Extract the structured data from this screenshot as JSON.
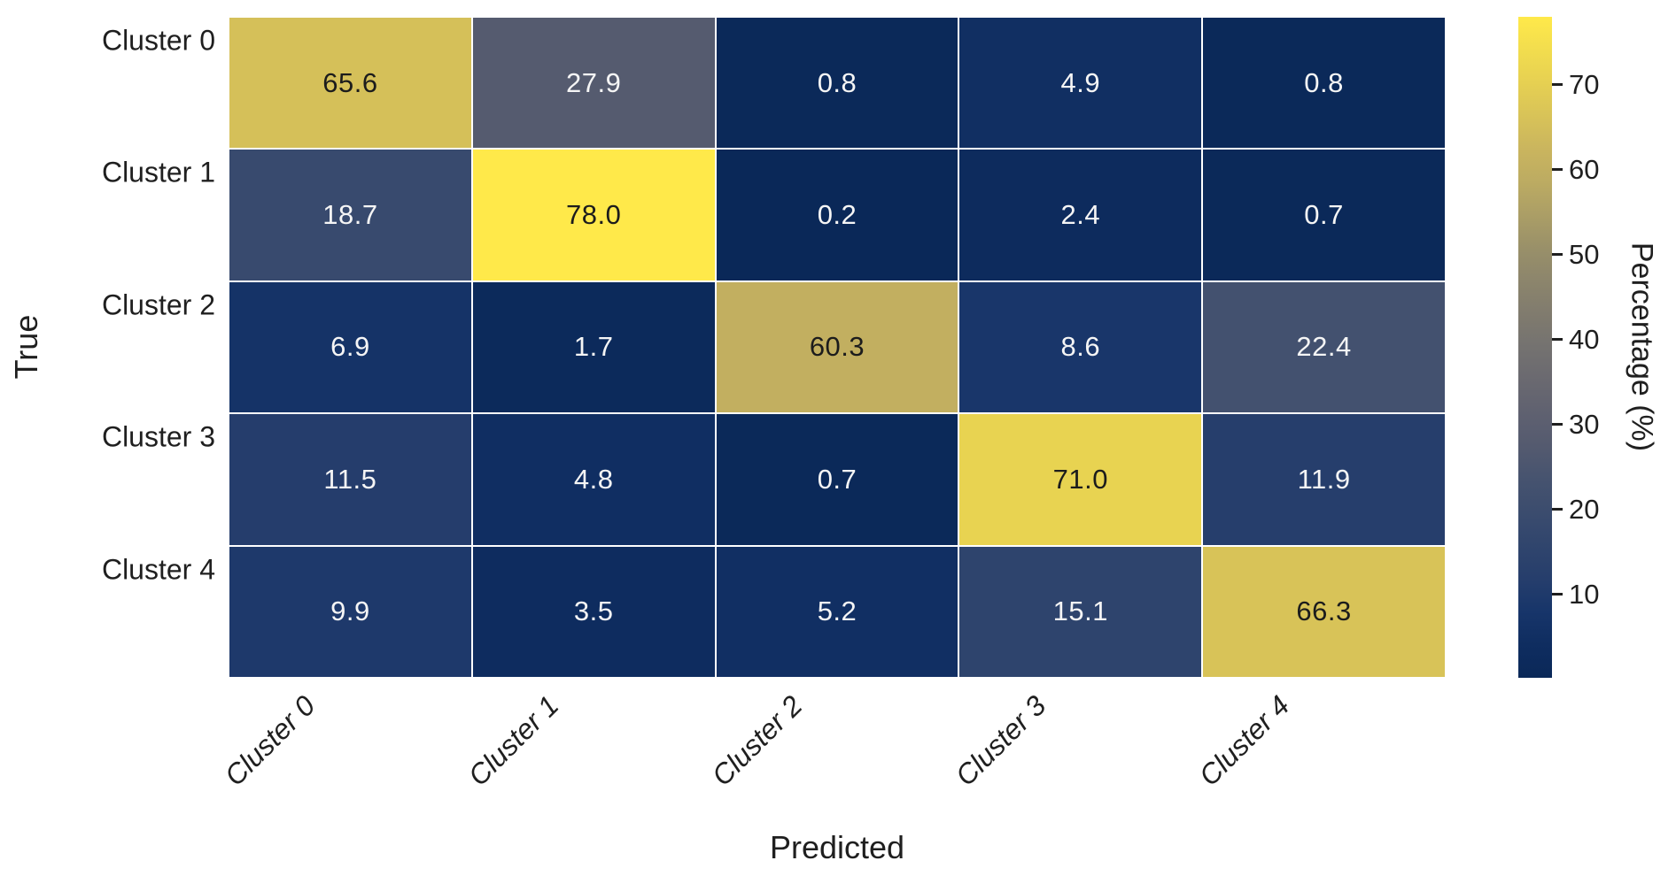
{
  "chart_data": {
    "type": "heatmap",
    "title": "",
    "xlabel": "Predicted",
    "ylabel": "True",
    "x_categories": [
      "Cluster 0",
      "Cluster 1",
      "Cluster 2",
      "Cluster 3",
      "Cluster 4"
    ],
    "y_categories": [
      "Cluster 0",
      "Cluster 1",
      "Cluster 2",
      "Cluster 3",
      "Cluster 4"
    ],
    "matrix": [
      [
        65.6,
        27.9,
        0.8,
        4.9,
        0.8
      ],
      [
        18.7,
        78.0,
        0.2,
        2.4,
        0.7
      ],
      [
        6.9,
        1.7,
        60.3,
        8.6,
        22.4
      ],
      [
        11.5,
        4.8,
        0.7,
        71.0,
        11.9
      ],
      [
        9.9,
        3.5,
        5.2,
        15.1,
        66.3
      ]
    ],
    "cell_value_decimals": 1,
    "colorbar": {
      "label": "Percentage (%)",
      "ticks": [
        10,
        20,
        30,
        40,
        50,
        60,
        70
      ],
      "vmin": 0.2,
      "vmax": 78.0,
      "orientation": "vertical",
      "position": "right"
    },
    "colormap": {
      "name": "cividis-like",
      "stops": [
        [
          0.0,
          "#0a2858"
        ],
        [
          0.05,
          "#0f2d60"
        ],
        [
          0.1,
          "#17356a"
        ],
        [
          0.15,
          "#263e6c"
        ],
        [
          0.2,
          "#30456d"
        ],
        [
          0.25,
          "#3b4c6e"
        ],
        [
          0.3,
          "#46536f"
        ],
        [
          0.35,
          "#545a6f"
        ],
        [
          0.4,
          "#5f6170"
        ],
        [
          0.45,
          "#6a6970"
        ],
        [
          0.5,
          "#747270"
        ],
        [
          0.55,
          "#807b6e"
        ],
        [
          0.6,
          "#8c856c"
        ],
        [
          0.65,
          "#999069"
        ],
        [
          0.7,
          "#ab9e66"
        ],
        [
          0.75,
          "#bcab62"
        ],
        [
          0.8,
          "#cab55e"
        ],
        [
          0.85,
          "#d8c358"
        ],
        [
          0.9,
          "#e6d052"
        ],
        [
          0.95,
          "#f2dd4e"
        ],
        [
          1.0,
          "#ffe94a"
        ]
      ]
    },
    "annotation_colors": {
      "light_text": "#f5f5f5",
      "dark_text": "#1c1c1c",
      "dark_text_threshold": 0.6
    },
    "gridline_color": "#ffffff",
    "axes": {
      "grid_on": false,
      "x_tick_rotation_deg": 45
    }
  }
}
